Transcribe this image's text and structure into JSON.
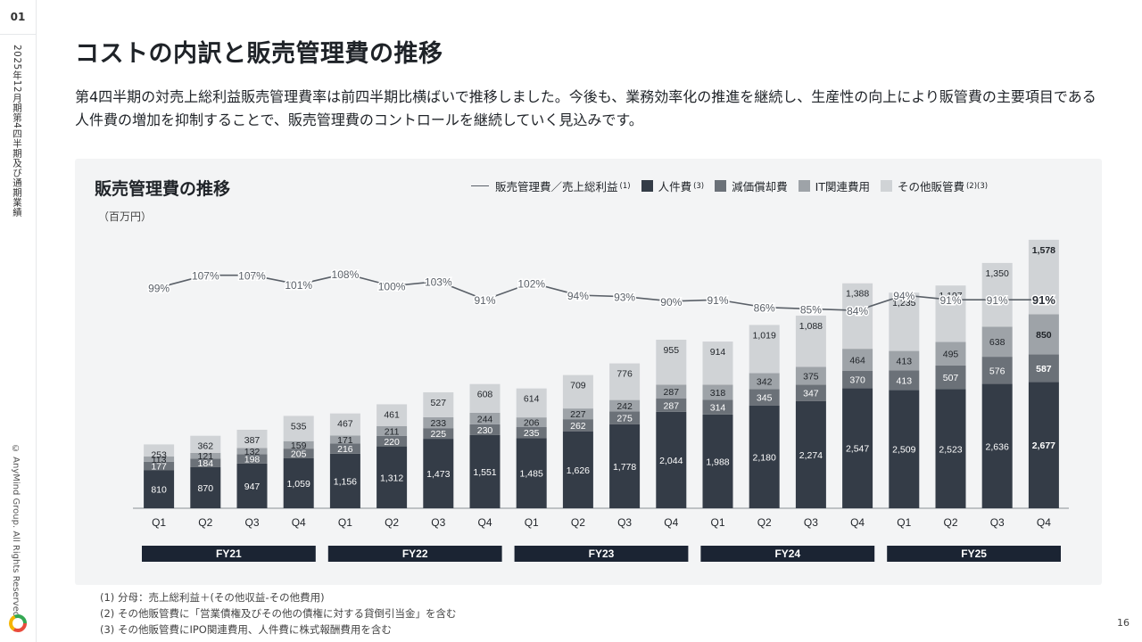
{
  "side": {
    "page_num": "01",
    "section": "2025年12月期第4四半期及び通期業績",
    "copyright": "© AnyMind Group. All Rights Reserved."
  },
  "title": "コストの内訳と販売管理費の推移",
  "lead": "第4四半期の対売上総利益販売管理費率は前四半期比横ばいで推移しました。今後も、業務効率化の推進を継続し、生産性の向上により販管費の主要項目である人件費の増加を抑制することで、販売管理費のコントロールを継続していく見込みです。",
  "panel_title": "販売管理費の推移",
  "unit": "（百万円）",
  "legend": [
    {
      "label": "販売管理費／売上総利益",
      "note": "(1)",
      "kind": "line",
      "color": "#5a6068"
    },
    {
      "label": "人件費",
      "note": "(3)",
      "kind": "box",
      "color": "#343c47"
    },
    {
      "label": "減価償却費",
      "note": "",
      "kind": "box",
      "color": "#6b7178"
    },
    {
      "label": "IT関連費用",
      "note": "",
      "kind": "box",
      "color": "#9ea3a8"
    },
    {
      "label": "その他販管費",
      "note": "(2)(3)",
      "kind": "box",
      "color": "#d0d3d6"
    }
  ],
  "chart_data": {
    "type": "bar",
    "stacked": true,
    "categories": [
      "Q1",
      "Q2",
      "Q3",
      "Q4",
      "Q1",
      "Q2",
      "Q3",
      "Q4",
      "Q1",
      "Q2",
      "Q3",
      "Q4",
      "Q1",
      "Q2",
      "Q3",
      "Q4",
      "Q1",
      "Q2",
      "Q3",
      "Q4"
    ],
    "fiscal_years": [
      {
        "label": "FY21",
        "quarters": 4
      },
      {
        "label": "FY22",
        "quarters": 4
      },
      {
        "label": "FY23",
        "quarters": 4
      },
      {
        "label": "FY24",
        "quarters": 4
      },
      {
        "label": "FY25",
        "quarters": 4
      }
    ],
    "series": [
      {
        "name": "人件費",
        "color": "#343c47",
        "label_color": "#ffffff",
        "values": [
          810,
          870,
          947,
          1059,
          1156,
          1312,
          1473,
          1551,
          1485,
          1626,
          1778,
          2044,
          1988,
          2180,
          2274,
          2547,
          2509,
          2523,
          2636,
          2677
        ]
      },
      {
        "name": "減価償却費",
        "color": "#6b7178",
        "label_color": "#ffffff",
        "values": [
          177,
          184,
          198,
          205,
          216,
          220,
          225,
          230,
          235,
          262,
          275,
          287,
          314,
          345,
          347,
          370,
          413,
          507,
          576,
          587
        ]
      },
      {
        "name": "IT関連費用",
        "color": "#9ea3a8",
        "label_color": "#1f2328",
        "values": [
          113,
          121,
          132,
          159,
          171,
          211,
          233,
          244,
          206,
          227,
          242,
          287,
          318,
          342,
          375,
          464,
          413,
          495,
          638,
          850
        ]
      },
      {
        "name": "その他販管費",
        "color": "#d0d3d6",
        "label_color": "#1f2328",
        "values": [
          253,
          362,
          387,
          535,
          467,
          461,
          527,
          608,
          614,
          709,
          776,
          955,
          914,
          1019,
          1088,
          1388,
          1235,
          1197,
          1350,
          1578
        ]
      }
    ],
    "ratio_line": {
      "name": "販売管理費／売上総利益",
      "color": "#5a6068",
      "values": [
        99,
        107,
        107,
        101,
        108,
        100,
        103,
        91,
        102,
        94,
        93,
        90,
        91,
        86,
        85,
        84,
        94,
        91,
        91,
        91
      ],
      "labels": [
        "99%",
        "107%",
        "107%",
        "101%",
        "108%",
        "100%",
        "103%",
        "91%",
        "102%",
        "94%",
        "93%",
        "90%",
        "91%",
        "86%",
        "85%",
        "84%",
        "94%",
        "91%",
        "91%",
        "91%"
      ]
    },
    "highlight_last": true,
    "ylim": [
      0,
      6000
    ]
  },
  "footnotes": [
    "(1) 分母：売上総利益＋(その他収益-その他費用)",
    "(2) その他販管費に「営業債権及びその他の債権に対する貸倒引当金」を含む",
    "(3) その他販管費にIPO関連費用、人件費に株式報酬費用を含む"
  ],
  "page_number": "16"
}
